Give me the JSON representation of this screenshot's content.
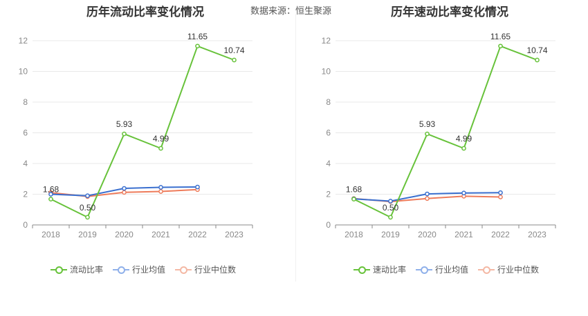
{
  "header": {
    "title_left": "历年流动比率变化情况",
    "title_right": "历年速动比率变化情况",
    "source": "数据来源：恒生聚源"
  },
  "colors": {
    "company": "#67c23a",
    "industry_avg": "#3a6fcf",
    "industry_median": "#ee7b5a",
    "legend_avg": "#8fb0ea",
    "legend_median": "#f4b8a4",
    "grid": "#e8e8e8",
    "axis": "#888888",
    "tick_text": "#888888"
  },
  "chart_data": [
    {
      "type": "line",
      "title": "历年流动比率变化情况",
      "categories": [
        "2018",
        "2019",
        "2020",
        "2021",
        "2022",
        "2023"
      ],
      "ylim": [
        0,
        12
      ],
      "yticks": [
        0,
        2,
        4,
        6,
        8,
        10,
        12
      ],
      "grid": true,
      "legend": "bottom",
      "series": [
        {
          "name": "流动比率",
          "values": [
            1.68,
            0.5,
            5.93,
            4.99,
            11.65,
            10.74
          ],
          "labels": [
            "1.68",
            "0.50",
            "5.93",
            "4.99",
            "11.65",
            "10.74"
          ]
        },
        {
          "name": "行业均值",
          "values": [
            2.0,
            1.9,
            2.38,
            2.45,
            2.47,
            null
          ]
        },
        {
          "name": "行业中位数",
          "values": [
            2.1,
            1.85,
            2.12,
            2.18,
            2.3,
            null
          ]
        }
      ]
    },
    {
      "type": "line",
      "title": "历年速动比率变化情况",
      "categories": [
        "2018",
        "2019",
        "2020",
        "2021",
        "2022",
        "2023"
      ],
      "ylim": [
        0,
        12
      ],
      "yticks": [
        0,
        2,
        4,
        6,
        8,
        10,
        12
      ],
      "grid": true,
      "legend": "bottom",
      "series": [
        {
          "name": "速动比率",
          "values": [
            1.68,
            0.5,
            5.93,
            4.99,
            11.65,
            10.74
          ],
          "labels": [
            "1.68",
            "0.50",
            "5.93",
            "4.99",
            "11.65",
            "10.74"
          ]
        },
        {
          "name": "行业均值",
          "values": [
            1.7,
            1.55,
            2.02,
            2.08,
            2.1,
            null
          ]
        },
        {
          "name": "行业中位数",
          "values": [
            1.72,
            1.52,
            1.72,
            1.87,
            1.82,
            null
          ]
        }
      ]
    }
  ]
}
